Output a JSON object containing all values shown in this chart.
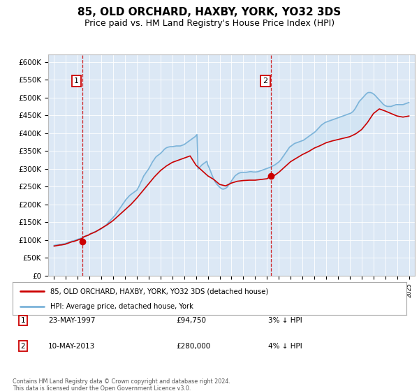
{
  "title": "85, OLD ORCHARD, HAXBY, YORK, YO32 3DS",
  "subtitle": "Price paid vs. HM Land Registry's House Price Index (HPI)",
  "title_fontsize": 11,
  "subtitle_fontsize": 9,
  "plot_bg_color": "#dce8f5",
  "ylabel_ticks": [
    "£0",
    "£50K",
    "£100K",
    "£150K",
    "£200K",
    "£250K",
    "£300K",
    "£350K",
    "£400K",
    "£450K",
    "£500K",
    "£550K",
    "£600K"
  ],
  "ylim_max": 620000,
  "xlim_start": 1994.5,
  "xlim_end": 2025.5,
  "sale1_year": 1997.38,
  "sale1_price": 94750,
  "sale1_label": "1",
  "sale1_date": "23-MAY-1997",
  "sale1_amount": "£94,750",
  "sale1_note": "3% ↓ HPI",
  "sale2_year": 2013.36,
  "sale2_price": 280000,
  "sale2_label": "2",
  "sale2_date": "10-MAY-2013",
  "sale2_amount": "£280,000",
  "sale2_note": "4% ↓ HPI",
  "hpi_line_color": "#7bb3d9",
  "hpi_fill_color": "#c5dff0",
  "price_line_color": "#cc0000",
  "marker_color": "#cc0000",
  "legend_label1": "85, OLD ORCHARD, HAXBY, YORK, YO32 3DS (detached house)",
  "legend_label2": "HPI: Average price, detached house, York",
  "footer_text": "Contains HM Land Registry data © Crown copyright and database right 2024.\nThis data is licensed under the Open Government Licence v3.0.",
  "hpi_x": [
    1995.0,
    1995.08,
    1995.17,
    1995.25,
    1995.33,
    1995.42,
    1995.5,
    1995.58,
    1995.67,
    1995.75,
    1995.83,
    1995.92,
    1996.0,
    1996.08,
    1996.17,
    1996.25,
    1996.33,
    1996.42,
    1996.5,
    1996.58,
    1996.67,
    1996.75,
    1996.83,
    1996.92,
    1997.0,
    1997.08,
    1997.17,
    1997.25,
    1997.33,
    1997.42,
    1997.5,
    1997.58,
    1997.67,
    1997.75,
    1997.83,
    1997.92,
    1998.0,
    1998.08,
    1998.17,
    1998.25,
    1998.33,
    1998.42,
    1998.5,
    1998.58,
    1998.67,
    1998.75,
    1998.83,
    1998.92,
    1999.0,
    1999.08,
    1999.17,
    1999.25,
    1999.33,
    1999.42,
    1999.5,
    1999.58,
    1999.67,
    1999.75,
    1999.83,
    1999.92,
    2000.0,
    2000.08,
    2000.17,
    2000.25,
    2000.33,
    2000.42,
    2000.5,
    2000.58,
    2000.67,
    2000.75,
    2000.83,
    2000.92,
    2001.0,
    2001.08,
    2001.17,
    2001.25,
    2001.33,
    2001.42,
    2001.5,
    2001.58,
    2001.67,
    2001.75,
    2001.83,
    2001.92,
    2002.0,
    2002.08,
    2002.17,
    2002.25,
    2002.33,
    2002.42,
    2002.5,
    2002.58,
    2002.67,
    2002.75,
    2002.83,
    2002.92,
    2003.0,
    2003.08,
    2003.17,
    2003.25,
    2003.33,
    2003.42,
    2003.5,
    2003.58,
    2003.67,
    2003.75,
    2003.83,
    2003.92,
    2004.0,
    2004.08,
    2004.17,
    2004.25,
    2004.33,
    2004.42,
    2004.5,
    2004.58,
    2004.67,
    2004.75,
    2004.83,
    2004.92,
    2005.0,
    2005.08,
    2005.17,
    2005.25,
    2005.33,
    2005.42,
    2005.5,
    2005.58,
    2005.67,
    2005.75,
    2005.83,
    2005.92,
    2006.0,
    2006.08,
    2006.17,
    2006.25,
    2006.33,
    2006.42,
    2006.5,
    2006.58,
    2006.67,
    2006.75,
    2006.83,
    2006.92,
    2007.0,
    2007.08,
    2007.17,
    2007.25,
    2007.33,
    2007.42,
    2007.5,
    2007.58,
    2007.67,
    2007.75,
    2007.83,
    2007.92,
    2008.0,
    2008.08,
    2008.17,
    2008.25,
    2008.33,
    2008.42,
    2008.5,
    2008.58,
    2008.67,
    2008.75,
    2008.83,
    2008.92,
    2009.0,
    2009.08,
    2009.17,
    2009.25,
    2009.33,
    2009.42,
    2009.5,
    2009.58,
    2009.67,
    2009.75,
    2009.83,
    2009.92,
    2010.0,
    2010.08,
    2010.17,
    2010.25,
    2010.33,
    2010.42,
    2010.5,
    2010.58,
    2010.67,
    2010.75,
    2010.83,
    2010.92,
    2011.0,
    2011.08,
    2011.17,
    2011.25,
    2011.33,
    2011.42,
    2011.5,
    2011.58,
    2011.67,
    2011.75,
    2011.83,
    2011.92,
    2012.0,
    2012.08,
    2012.17,
    2012.25,
    2012.33,
    2012.42,
    2012.5,
    2012.58,
    2012.67,
    2012.75,
    2012.83,
    2012.92,
    2013.0,
    2013.08,
    2013.17,
    2013.25,
    2013.33,
    2013.42,
    2013.5,
    2013.58,
    2013.67,
    2013.75,
    2013.83,
    2013.92,
    2014.0,
    2014.08,
    2014.17,
    2014.25,
    2014.33,
    2014.42,
    2014.5,
    2014.58,
    2014.67,
    2014.75,
    2014.83,
    2014.92,
    2015.0,
    2015.08,
    2015.17,
    2015.25,
    2015.33,
    2015.42,
    2015.5,
    2015.58,
    2015.67,
    2015.75,
    2015.83,
    2015.92,
    2016.0,
    2016.08,
    2016.17,
    2016.25,
    2016.33,
    2016.42,
    2016.5,
    2016.58,
    2016.67,
    2016.75,
    2016.83,
    2016.92,
    2017.0,
    2017.08,
    2017.17,
    2017.25,
    2017.33,
    2017.42,
    2017.5,
    2017.58,
    2017.67,
    2017.75,
    2017.83,
    2017.92,
    2018.0,
    2018.08,
    2018.17,
    2018.25,
    2018.33,
    2018.42,
    2018.5,
    2018.58,
    2018.67,
    2018.75,
    2018.83,
    2018.92,
    2019.0,
    2019.08,
    2019.17,
    2019.25,
    2019.33,
    2019.42,
    2019.5,
    2019.58,
    2019.67,
    2019.75,
    2019.83,
    2019.92,
    2020.0,
    2020.08,
    2020.17,
    2020.25,
    2020.33,
    2020.42,
    2020.5,
    2020.58,
    2020.67,
    2020.75,
    2020.83,
    2020.92,
    2021.0,
    2021.08,
    2021.17,
    2021.25,
    2021.33,
    2021.42,
    2021.5,
    2021.58,
    2021.67,
    2021.75,
    2021.83,
    2021.92,
    2022.0,
    2022.08,
    2022.17,
    2022.25,
    2022.33,
    2022.42,
    2022.5,
    2022.58,
    2022.67,
    2022.75,
    2022.83,
    2022.92,
    2023.0,
    2023.08,
    2023.17,
    2023.25,
    2023.33,
    2023.42,
    2023.5,
    2023.58,
    2023.67,
    2023.75,
    2023.83,
    2023.92,
    2024.0,
    2024.08,
    2024.17,
    2024.25,
    2024.33,
    2024.42,
    2024.5,
    2024.58,
    2024.67,
    2024.75,
    2024.83,
    2024.92,
    2025.0
  ],
  "hpi_y": [
    85000,
    85500,
    86000,
    86500,
    87000,
    87500,
    88000,
    88000,
    88500,
    89000,
    89500,
    90000,
    91000,
    92000,
    93000,
    94000,
    95000,
    96000,
    97000,
    97500,
    98000,
    99000,
    100000,
    101000,
    102000,
    103000,
    104000,
    105000,
    106000,
    107000,
    108500,
    110000,
    111000,
    112000,
    113000,
    114000,
    116000,
    118000,
    119000,
    120000,
    121500,
    123000,
    124000,
    125000,
    126500,
    128000,
    129000,
    130000,
    132000,
    134000,
    136000,
    138000,
    140000,
    143000,
    146000,
    149000,
    152000,
    155000,
    158000,
    161000,
    164000,
    167000,
    170000,
    174000,
    178000,
    182000,
    186000,
    190000,
    194000,
    198000,
    202000,
    206000,
    210000,
    214000,
    217000,
    220000,
    223000,
    226000,
    228000,
    230000,
    232000,
    234000,
    236000,
    238000,
    240000,
    245000,
    250000,
    256000,
    262000,
    268000,
    274000,
    280000,
    284000,
    288000,
    292000,
    296000,
    300000,
    305000,
    310000,
    315000,
    320000,
    324000,
    328000,
    332000,
    335000,
    337000,
    339000,
    341000,
    343000,
    346000,
    349000,
    352000,
    355000,
    357000,
    359000,
    360000,
    361000,
    361500,
    362000,
    362000,
    362000,
    362500,
    363000,
    363500,
    364000,
    364000,
    364000,
    364000,
    364000,
    365000,
    366000,
    367000,
    368000,
    370000,
    372000,
    374000,
    376000,
    378000,
    380000,
    382000,
    384000,
    386000,
    388000,
    390000,
    393000,
    396000,
    299000,
    302000,
    305000,
    308000,
    311000,
    313000,
    315000,
    317000,
    319000,
    321000,
    310000,
    305000,
    298000,
    291000,
    284000,
    277000,
    270000,
    265000,
    261000,
    257000,
    254000,
    251000,
    248000,
    246000,
    244000,
    243000,
    243000,
    244000,
    245000,
    247000,
    250000,
    254000,
    258000,
    262000,
    266000,
    270000,
    274000,
    278000,
    281000,
    283000,
    285000,
    287000,
    288000,
    289000,
    289500,
    290000,
    290000,
    290000,
    290000,
    290000,
    290500,
    291000,
    291500,
    292000,
    292000,
    291500,
    291000,
    291000,
    291000,
    291000,
    291500,
    292000,
    293000,
    294000,
    295000,
    296000,
    297000,
    298000,
    299000,
    300000,
    301000,
    302000,
    303000,
    304000,
    305000,
    306500,
    308000,
    309500,
    311000,
    313000,
    315000,
    317000,
    319000,
    322000,
    325000,
    329000,
    333000,
    337000,
    341000,
    345000,
    349000,
    353000,
    357000,
    361000,
    363000,
    365000,
    367000,
    369000,
    371000,
    372000,
    373000,
    374000,
    375000,
    376000,
    377000,
    378000,
    379000,
    380000,
    382000,
    384000,
    386000,
    388000,
    390000,
    392000,
    394000,
    396000,
    398000,
    400000,
    402000,
    404000,
    407000,
    410000,
    413000,
    416000,
    419000,
    422000,
    424000,
    426000,
    428000,
    430000,
    431000,
    432000,
    433000,
    434000,
    435000,
    436000,
    437000,
    438000,
    439000,
    440000,
    441000,
    442000,
    443000,
    444000,
    445000,
    446000,
    447000,
    448000,
    449000,
    450000,
    451000,
    452000,
    453000,
    454000,
    455000,
    456000,
    458000,
    460000,
    463000,
    467000,
    471000,
    476000,
    481000,
    486000,
    490000,
    493000,
    496000,
    499000,
    502000,
    505000,
    508000,
    511000,
    513000,
    514000,
    514000,
    514000,
    513000,
    512000,
    510000,
    508000,
    505000,
    502000,
    499000,
    496000,
    493000,
    490000,
    487000,
    484000,
    481000,
    479000,
    477000,
    476000,
    475000,
    475000,
    475000,
    475000,
    475000,
    476000,
    477000,
    478000,
    479000,
    480000,
    480000,
    480000,
    480000,
    480000,
    480000,
    480000,
    480000,
    481000,
    482000,
    483000,
    484000,
    485000,
    486000
  ],
  "price_x": [
    1995.0,
    1995.08,
    1995.17,
    1995.25,
    1995.33,
    1995.42,
    1995.5,
    1995.58,
    1995.67,
    1995.75,
    1995.83,
    1995.92,
    1996.0,
    1996.08,
    1996.17,
    1996.25,
    1996.33,
    1996.42,
    1996.5,
    1996.58,
    1996.67,
    1996.75,
    1996.83,
    1996.92,
    1997.0,
    1997.08,
    1997.17,
    1997.25,
    1997.33,
    1997.38,
    1997.42,
    1997.5,
    1997.58,
    1997.67,
    1997.75,
    1997.83,
    1997.92,
    1998.0,
    1998.5,
    1999.0,
    1999.5,
    2000.0,
    2000.5,
    2001.0,
    2001.5,
    2002.0,
    2002.5,
    2003.0,
    2003.5,
    2004.0,
    2004.5,
    2005.0,
    2005.5,
    2006.0,
    2006.5,
    2007.0,
    2007.5,
    2008.0,
    2008.5,
    2009.0,
    2009.5,
    2010.0,
    2010.5,
    2011.0,
    2011.5,
    2012.0,
    2012.5,
    2013.0,
    2013.36,
    2013.5,
    2014.0,
    2014.5,
    2015.0,
    2015.5,
    2016.0,
    2016.5,
    2017.0,
    2017.5,
    2018.0,
    2018.5,
    2019.0,
    2019.5,
    2020.0,
    2020.5,
    2021.0,
    2021.5,
    2022.0,
    2022.5,
    2023.0,
    2023.5,
    2024.0,
    2024.5,
    2025.0
  ],
  "price_y": [
    83000,
    83500,
    84000,
    84500,
    85000,
    85500,
    86000,
    86000,
    86500,
    87000,
    87500,
    88000,
    89000,
    90000,
    91000,
    92000,
    93000,
    94000,
    95000,
    95500,
    96000,
    97000,
    98000,
    99000,
    100000,
    101000,
    102000,
    103000,
    104000,
    94750,
    107000,
    108500,
    110000,
    111000,
    112000,
    113000,
    114000,
    116000,
    123000,
    133000,
    143000,
    155000,
    170000,
    185000,
    200000,
    218000,
    238000,
    258000,
    278000,
    295000,
    308000,
    318000,
    324000,
    330000,
    336000,
    310000,
    295000,
    280000,
    270000,
    256000,
    252000,
    260000,
    265000,
    267000,
    268000,
    268000,
    270000,
    272000,
    280000,
    278000,
    290000,
    305000,
    320000,
    330000,
    340000,
    348000,
    358000,
    365000,
    373000,
    378000,
    382000,
    386000,
    390000,
    398000,
    410000,
    430000,
    455000,
    468000,
    462000,
    455000,
    448000,
    445000,
    448000
  ]
}
